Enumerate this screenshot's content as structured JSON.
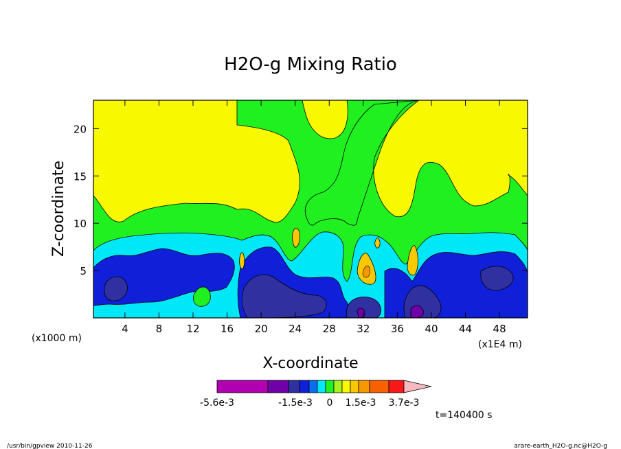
{
  "chart_data": {
    "type": "heatmap",
    "title": "H2O-g Mixing Ratio",
    "xlabel": "X-coordinate",
    "ylabel": "Z-coordinate",
    "x_unit_left": "(x1000 m)",
    "x_unit_right": "(x1E4 m)",
    "xlim": [
      0,
      51
    ],
    "ylim": [
      0,
      23
    ],
    "x_ticks": [
      "4",
      "8",
      "12",
      "16",
      "20",
      "24",
      "28",
      "32",
      "36",
      "40",
      "44",
      "48"
    ],
    "y_ticks": [
      "5",
      "10",
      "15",
      "20"
    ],
    "levels": [
      {
        "color": "#b000b0"
      },
      {
        "color": "#7000a8"
      },
      {
        "color": "#3030a0"
      },
      {
        "color": "#1020d8"
      },
      {
        "color": "#0870f0"
      },
      {
        "color": "#00e8f8"
      },
      {
        "color": "#20f020"
      },
      {
        "color": "#a8f020"
      },
      {
        "color": "#f8f800"
      },
      {
        "color": "#f8c800"
      },
      {
        "color": "#f89800"
      },
      {
        "color": "#f86000"
      },
      {
        "color": "#f81818"
      },
      {
        "color": "#f87878"
      },
      {
        "color": "#f8b8c0"
      }
    ],
    "colorbar_labels": [
      "-5.6e-3",
      "-1.5e-3",
      "0",
      "1.5e-3",
      "3.7e-3"
    ],
    "regions": [
      {
        "name": "green-band",
        "color": "#20f020",
        "z_range": [
          3,
          11
        ]
      },
      {
        "name": "cyan-band",
        "color": "#00e8f8",
        "z_range": [
          2,
          9
        ]
      },
      {
        "name": "blue-band",
        "color": "#1020d8",
        "z_range": [
          1,
          7
        ]
      },
      {
        "name": "dark-blue-core",
        "color": "#3030a0",
        "z_range": [
          0,
          4
        ]
      },
      {
        "name": "yellow-upper",
        "color": "#f8f800",
        "z_range": [
          10,
          23
        ]
      }
    ]
  },
  "time_label": "t=140400 s",
  "footer_left": "/usr/bin/gpview  2010-11-26",
  "footer_right": "arare-earth_H2O-g.nc@H2O-g"
}
